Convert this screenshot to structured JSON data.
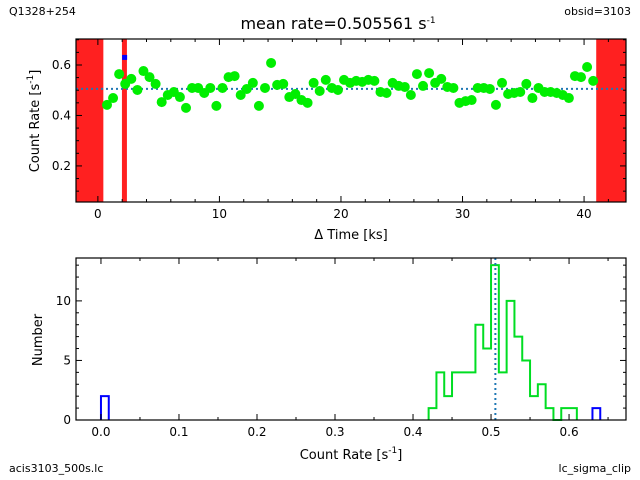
{
  "corners": {
    "top_left": "Q1328+254",
    "top_right": "obsid=3103",
    "bottom_left": "acis3103_500s.lc",
    "bottom_right": "lc_sigma_clip"
  },
  "chart_data": [
    {
      "type": "scatter",
      "title": "mean rate=0.505561 s",
      "title_sup": "-1",
      "xlabel": "Δ Time [ks]",
      "ylabel": "Count Rate [s",
      "ylabel_sup": "-1",
      "ylabel_end": "]",
      "xlim": [
        -1.8,
        43.45
      ],
      "ylim": [
        0.057,
        0.703
      ],
      "xticks": [
        0,
        10,
        20,
        30,
        40
      ],
      "yticks": [
        0.2,
        0.4,
        0.6
      ],
      "xtick_labels": [
        "0",
        "10",
        "20",
        "30",
        "40"
      ],
      "ytick_labels": [
        "0.2",
        "0.4",
        "0.6"
      ],
      "grid": false,
      "mean_line": 0.505561,
      "colors": {
        "good": "#00ee00",
        "clipped": "#0000ff",
        "excluded": "#ff2020",
        "mean": "#1f77b4"
      },
      "excluded_intervals": [
        [
          -1.8,
          0.45
        ],
        [
          1.98,
          2.39
        ],
        [
          41.0,
          43.45
        ]
      ],
      "clipped_points": [
        {
          "t": 2.2,
          "rate": 0.63
        }
      ],
      "t_start": 0.75,
      "t_step": 0.5,
      "rates": [
        0.442,
        0.469,
        0.564,
        0.525,
        0.545,
        0.501,
        0.576,
        0.552,
        0.525,
        0.453,
        0.481,
        0.493,
        0.473,
        0.43,
        0.509,
        0.509,
        0.489,
        0.509,
        0.438,
        0.509,
        0.552,
        0.556,
        0.481,
        0.505,
        0.529,
        0.438,
        0.509,
        0.608,
        0.521,
        0.525,
        0.473,
        0.485,
        0.461,
        0.45,
        0.529,
        0.497,
        0.541,
        0.509,
        0.501,
        0.541,
        0.529,
        0.537,
        0.533,
        0.541,
        0.537,
        0.493,
        0.489,
        0.529,
        0.517,
        0.513,
        0.481,
        0.564,
        0.517,
        0.568,
        0.529,
        0.545,
        0.513,
        0.509,
        0.45,
        0.457,
        0.461,
        0.509,
        0.509,
        0.505,
        0.442,
        0.529,
        0.485,
        0.489,
        0.493,
        0.525,
        0.469,
        0.509,
        0.493,
        0.493,
        0.489,
        0.481,
        0.469,
        0.556,
        0.552,
        0.592,
        0.537
      ]
    },
    {
      "type": "bar",
      "subtype": "step-histogram",
      "xlabel": "Count Rate [s",
      "xlabel_sup": "-1",
      "xlabel_end": "]",
      "ylabel": "Number",
      "xlim": [
        -0.032,
        0.673
      ],
      "ylim": [
        0,
        13.6
      ],
      "xticks": [
        0.0,
        0.1,
        0.2,
        0.3,
        0.4,
        0.5,
        0.6
      ],
      "xtick_labels": [
        "0.0",
        "0.1",
        "0.2",
        "0.3",
        "0.4",
        "0.5",
        "0.6"
      ],
      "yticks": [
        0,
        5,
        10
      ],
      "ytick_labels": [
        "0",
        "5",
        "10"
      ],
      "grid": false,
      "mean_line": 0.505561,
      "bin_width": 0.01,
      "series": [
        {
          "color": "#00dd22",
          "bin_start": 0.42,
          "counts": [
            1,
            4,
            2,
            4,
            4,
            4,
            8,
            6,
            13,
            4,
            10,
            7,
            5,
            2,
            3,
            1,
            0,
            1,
            1
          ]
        },
        {
          "color": "#0000ff",
          "bins": [
            {
              "start": 0.0,
              "count": 2
            },
            {
              "start": 0.63,
              "count": 1
            }
          ]
        }
      ]
    }
  ]
}
